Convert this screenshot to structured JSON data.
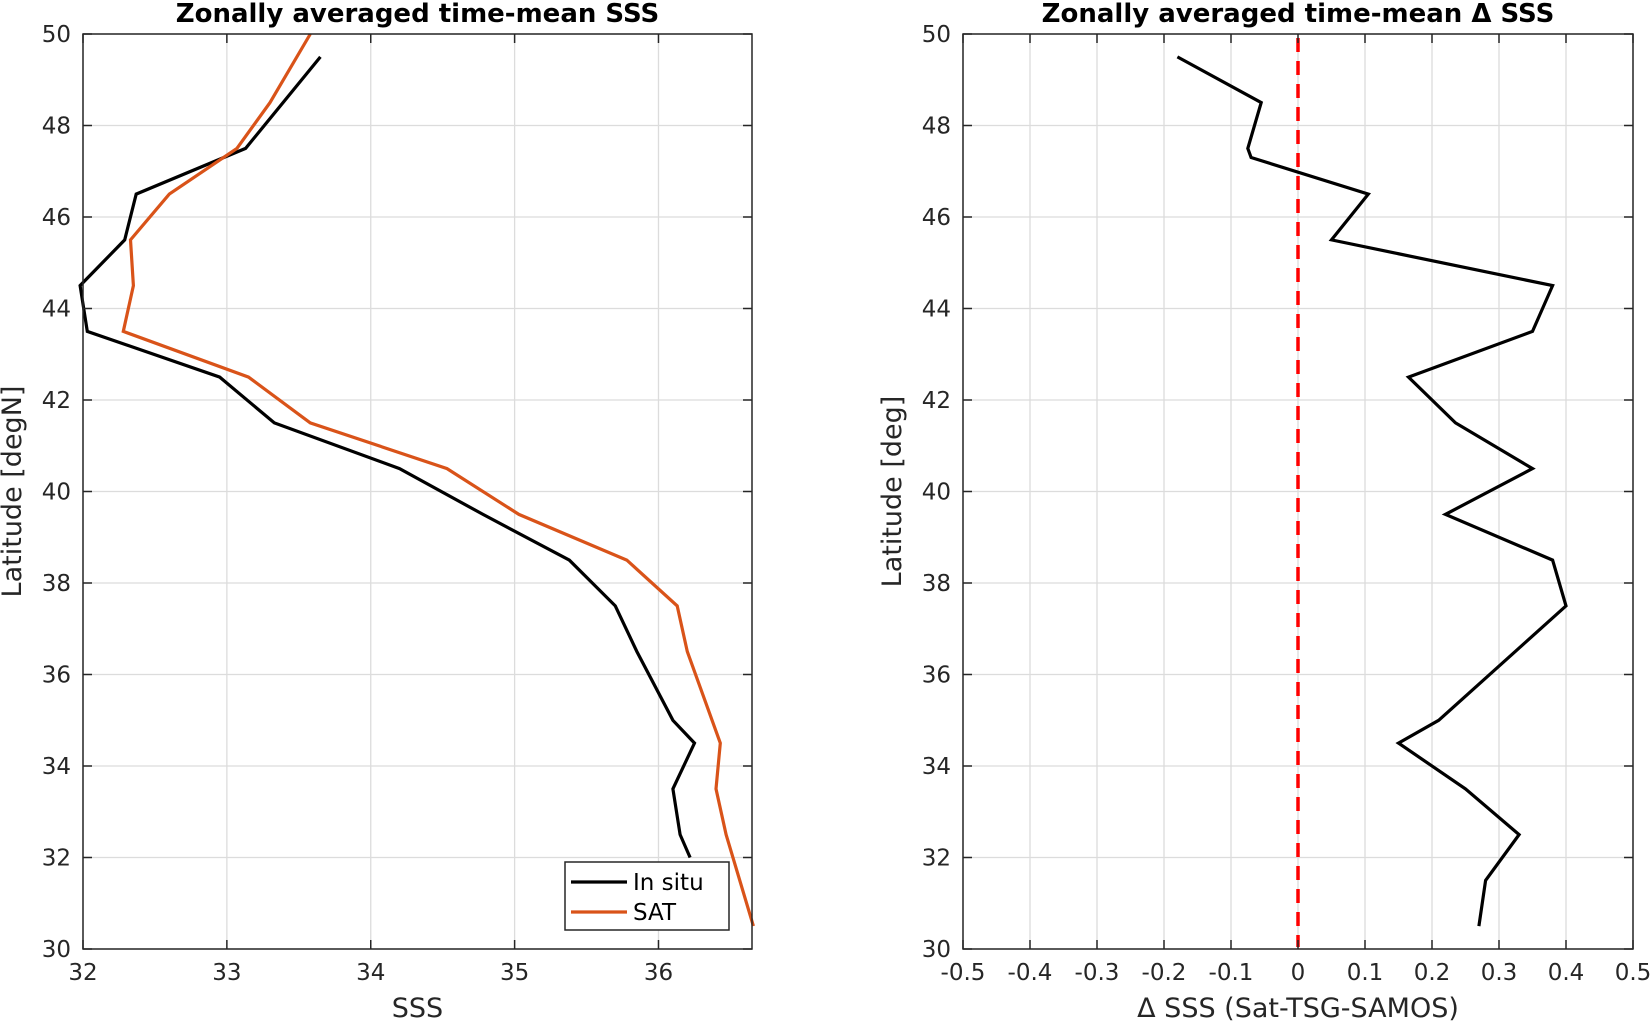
{
  "chart_data": [
    {
      "type": "line",
      "title": "Zonally averaged time-mean SSS",
      "xlabel": "SSS",
      "ylabel": "Latitude [degN]",
      "xlim": [
        32,
        36.65
      ],
      "ylim": [
        30,
        50
      ],
      "xticks": [
        32,
        33,
        34,
        35,
        36
      ],
      "yticks": [
        30,
        32,
        34,
        36,
        38,
        40,
        42,
        44,
        46,
        48,
        50
      ],
      "grid": true,
      "legend_location": "bottom-right",
      "series": [
        {
          "name": "In situ",
          "color": "#000000",
          "points": [
            [
              33.65,
              49.5
            ],
            [
              33.13,
              47.5
            ],
            [
              32.37,
              46.5
            ],
            [
              32.29,
              45.5
            ],
            [
              31.98,
              44.5
            ],
            [
              32.03,
              43.5
            ],
            [
              32.95,
              42.5
            ],
            [
              33.33,
              41.5
            ],
            [
              34.2,
              40.5
            ],
            [
              34.78,
              39.5
            ],
            [
              35.38,
              38.5
            ],
            [
              35.7,
              37.5
            ],
            [
              35.85,
              36.5
            ],
            [
              36.1,
              35.0
            ],
            [
              36.25,
              34.5
            ],
            [
              36.1,
              33.5
            ],
            [
              36.15,
              32.5
            ],
            [
              36.22,
              32.0
            ]
          ]
        },
        {
          "name": "SAT",
          "color": "#d95319",
          "points": [
            [
              33.58,
              50.0
            ],
            [
              33.3,
              48.5
            ],
            [
              33.07,
              47.5
            ],
            [
              32.6,
              46.5
            ],
            [
              32.33,
              45.5
            ],
            [
              32.35,
              44.5
            ],
            [
              32.28,
              43.5
            ],
            [
              33.15,
              42.5
            ],
            [
              33.58,
              41.5
            ],
            [
              34.53,
              40.5
            ],
            [
              35.03,
              39.5
            ],
            [
              35.78,
              38.5
            ],
            [
              36.13,
              37.5
            ],
            [
              36.2,
              36.5
            ],
            [
              36.43,
              34.5
            ],
            [
              36.4,
              33.5
            ],
            [
              36.47,
              32.5
            ],
            [
              36.66,
              30.5
            ]
          ]
        }
      ]
    },
    {
      "type": "line",
      "title": "Zonally averaged time-mean Δ SSS",
      "xlabel": "Δ SSS (Sat-TSG-SAMOS)",
      "ylabel": "Latitude [deg]",
      "xlim": [
        -0.5,
        0.5
      ],
      "ylim": [
        30,
        50
      ],
      "xticks": [
        -0.5,
        -0.4,
        -0.3,
        -0.2,
        -0.1,
        0,
        0.1,
        0.2,
        0.3,
        0.4,
        0.5
      ],
      "xticklabels": [
        "-0.5",
        "-0.4",
        "-0.3",
        "-0.2",
        "-0.1",
        "0",
        "0.1",
        "0.2",
        "0.3",
        "0.4",
        "0.5"
      ],
      "yticks": [
        30,
        32,
        34,
        36,
        38,
        40,
        42,
        44,
        46,
        48,
        50
      ],
      "grid": true,
      "reference_line": {
        "x": 0,
        "color": "#ff0000",
        "style": "dashed"
      },
      "series": [
        {
          "color": "#000000",
          "points": [
            [
              -0.18,
              49.5
            ],
            [
              -0.055,
              48.5
            ],
            [
              -0.075,
              47.5
            ],
            [
              -0.07,
              47.3
            ],
            [
              0.105,
              46.5
            ],
            [
              0.05,
              45.5
            ],
            [
              0.38,
              44.5
            ],
            [
              0.35,
              43.5
            ],
            [
              0.165,
              42.5
            ],
            [
              0.235,
              41.5
            ],
            [
              0.35,
              40.5
            ],
            [
              0.22,
              39.5
            ],
            [
              0.38,
              38.5
            ],
            [
              0.4,
              37.5
            ],
            [
              0.21,
              35.0
            ],
            [
              0.15,
              34.5
            ],
            [
              0.25,
              33.5
            ],
            [
              0.33,
              32.5
            ],
            [
              0.28,
              31.5
            ],
            [
              0.27,
              30.5
            ]
          ]
        }
      ]
    }
  ]
}
